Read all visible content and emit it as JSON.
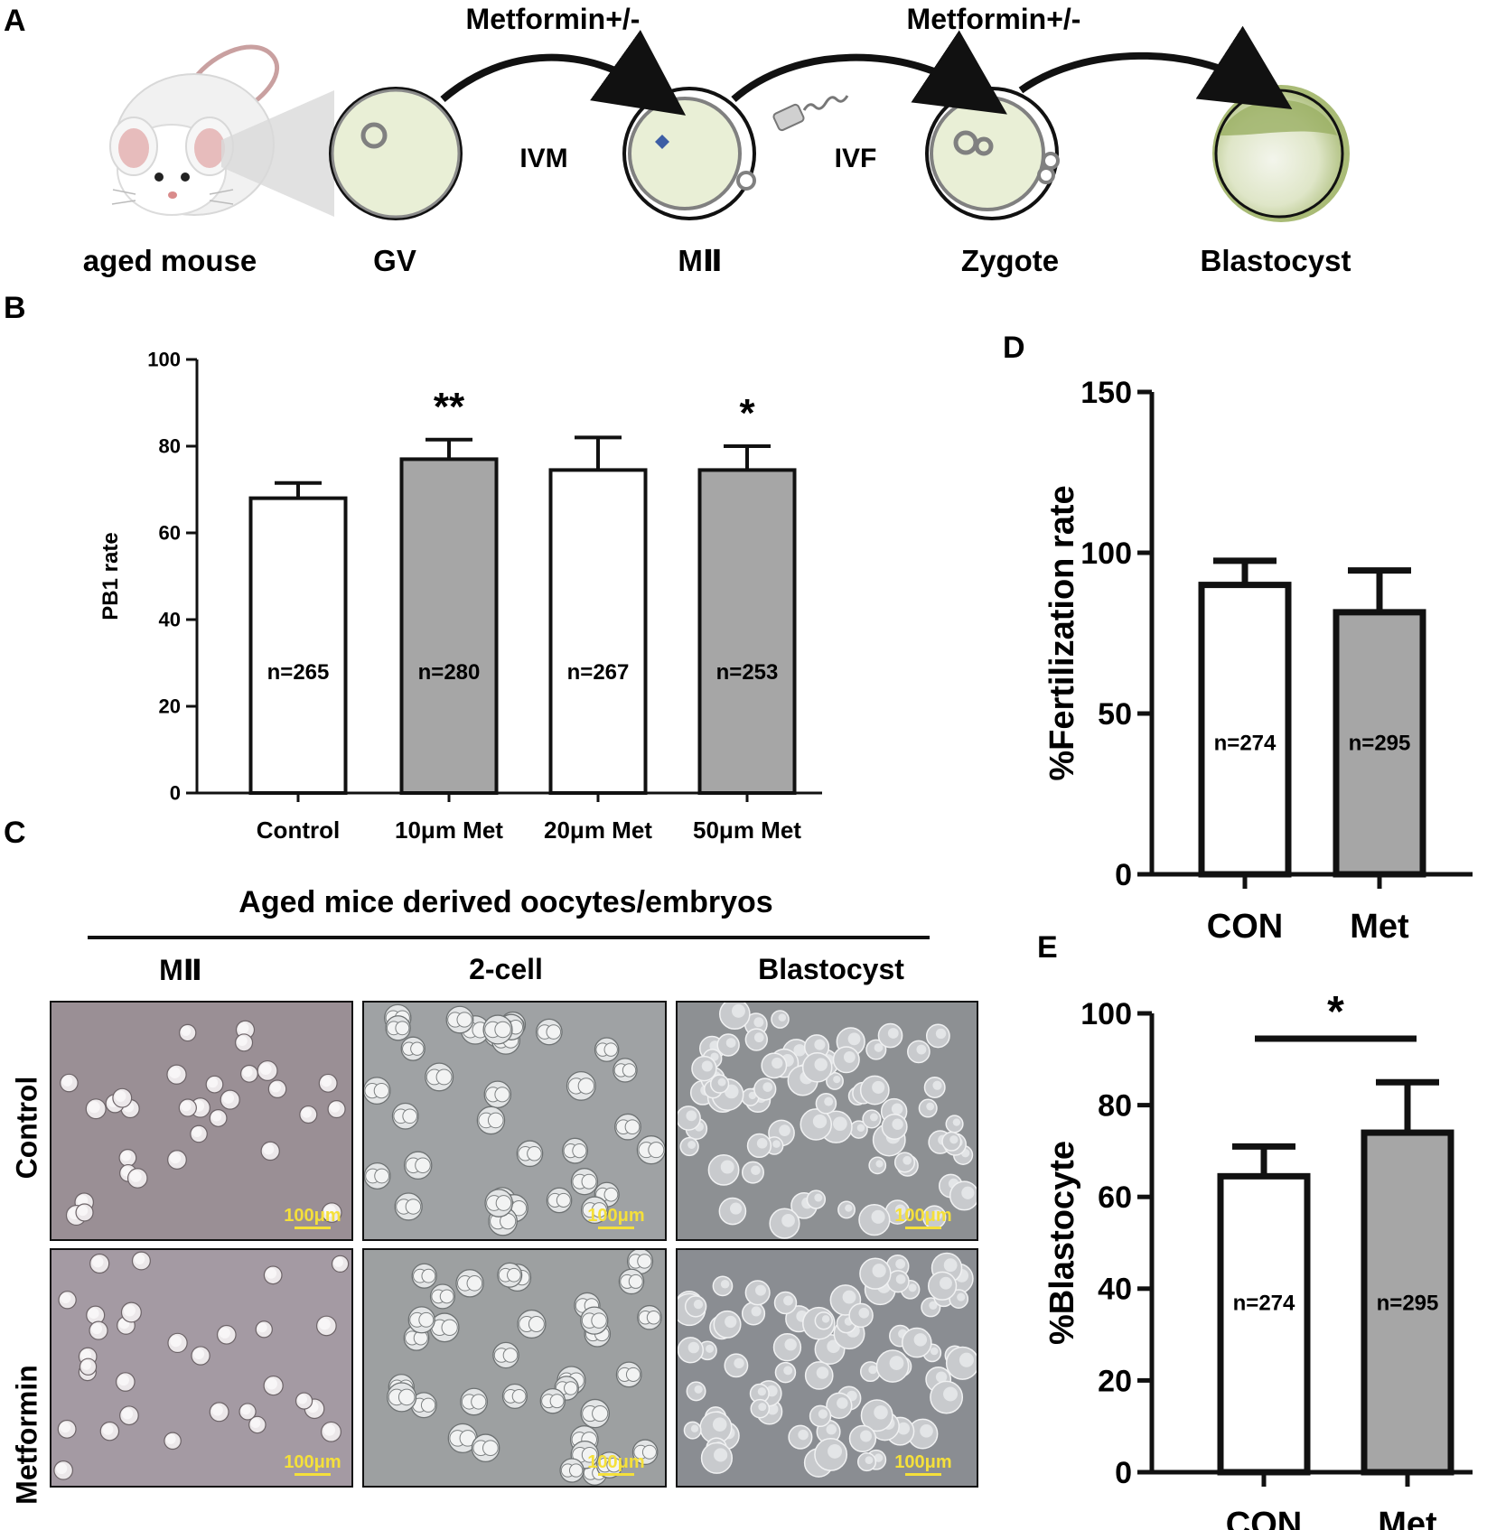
{
  "panels": {
    "A": "A",
    "B": "B",
    "C": "C",
    "D": "D",
    "E": "E"
  },
  "workflow": {
    "stage_labels": [
      "aged mouse",
      "GV",
      "MⅡ",
      "Zygote",
      "Blastocyst"
    ],
    "treatment_labels": [
      "Metformin+/-",
      "Metformin+/-"
    ],
    "process_labels": [
      "IVM",
      "IVF"
    ],
    "colors": {
      "cell_fill": "#e9efd6",
      "cell_edge": "#808080",
      "blastocyst": "#9aaf63",
      "arrow": "#111111"
    }
  },
  "micrographs": {
    "title": "Aged mice derived oocytes/embryos",
    "column_labels": [
      "MⅡ",
      "2-cell",
      "Blastocyst"
    ],
    "row_labels": [
      "Control",
      "Metformin"
    ],
    "scale_label": "100μm",
    "colors": {
      "scale": "#f5e03a",
      "bg_mii_control": "#9a8f95",
      "bg_mii_met": "#a49aa3",
      "bg_2cell": "#9fa2a4",
      "bg_blast": "#8d9093"
    }
  },
  "chart_data": [
    {
      "id": "B",
      "type": "bar",
      "title": "",
      "xlabel": "",
      "ylabel": "PB1 rate",
      "categories": [
        "Control",
        "10μm Met",
        "20μm Met",
        "50μm Met"
      ],
      "values": [
        68,
        77,
        74.5,
        74.5
      ],
      "errors": [
        3.5,
        4.5,
        7.5,
        5.5
      ],
      "annotations": [
        "n=265",
        "n=280",
        "n=267",
        "n=253"
      ],
      "significance": [
        "",
        "**",
        "",
        "*"
      ],
      "ylim": [
        0,
        100
      ],
      "yticks": [
        0,
        20,
        40,
        60,
        80,
        100
      ],
      "bar_colors": [
        "#ffffff",
        "#a6a6a6",
        "#ffffff",
        "#a6a6a6"
      ]
    },
    {
      "id": "D",
      "type": "bar",
      "title": "",
      "xlabel": "",
      "ylabel": "%Fertilization rate",
      "categories": [
        "CON",
        "Met"
      ],
      "values": [
        90,
        81.5
      ],
      "errors": [
        7.5,
        13
      ],
      "annotations": [
        "n=274",
        "n=295"
      ],
      "significance": [
        "",
        ""
      ],
      "ylim": [
        0,
        150
      ],
      "yticks": [
        0,
        50,
        100,
        150
      ],
      "bar_colors": [
        "#ffffff",
        "#a6a6a6"
      ]
    },
    {
      "id": "E",
      "type": "bar",
      "title": "",
      "xlabel": "",
      "ylabel": "%Blastocyte",
      "categories": [
        "CON",
        "Met"
      ],
      "values": [
        64.5,
        74
      ],
      "errors": [
        6.5,
        11
      ],
      "annotations": [
        "n=274",
        "n=295"
      ],
      "significance": [
        "*"
      ],
      "ylim": [
        0,
        100
      ],
      "yticks": [
        0,
        20,
        40,
        60,
        80,
        100
      ],
      "bar_colors": [
        "#ffffff",
        "#a6a6a6"
      ]
    }
  ]
}
